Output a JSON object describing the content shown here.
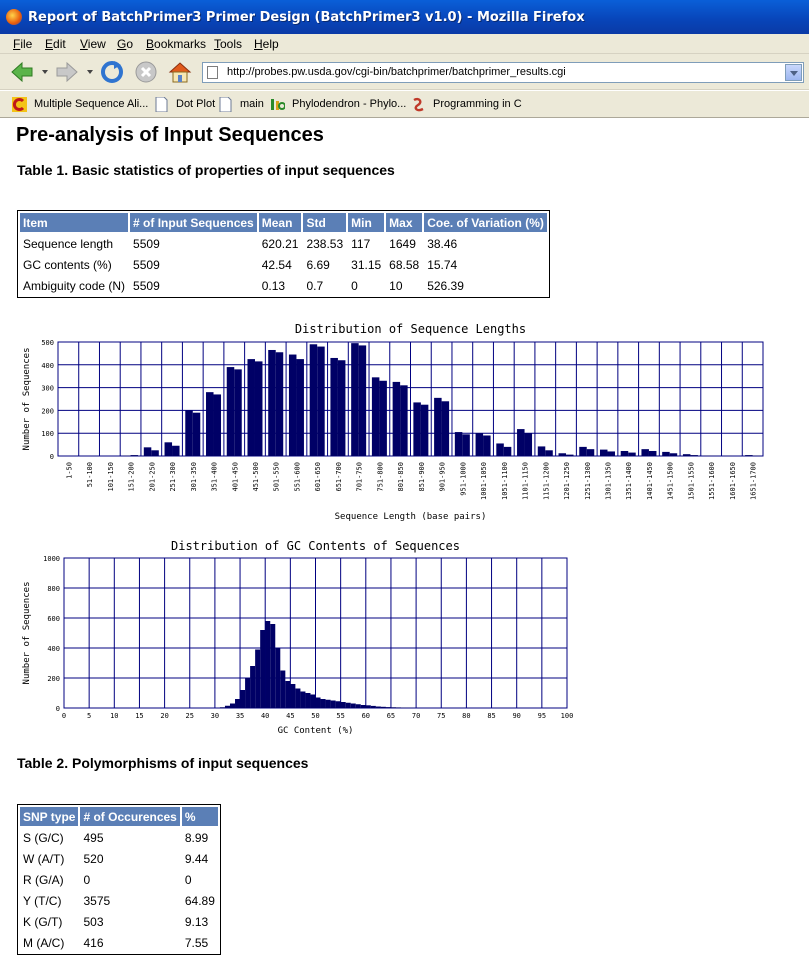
{
  "window": {
    "title": "Report of BatchPrimer3 Primer Design (BatchPrimer3 v1.0) - Mozilla Firefox"
  },
  "menu": [
    "File",
    "Edit",
    "View",
    "Go",
    "Bookmarks",
    "Tools",
    "Help"
  ],
  "address": {
    "url": "http://probes.pw.usda.gov/cgi-bin/batchprimer/batchprimer_results.cgi"
  },
  "bookmarks": [
    {
      "label": "Multiple Sequence Ali...",
      "icon": "c-logo-icon"
    },
    {
      "label": "Dot Plot",
      "icon": "page-icon"
    },
    {
      "label": "main",
      "icon": "page-icon"
    },
    {
      "label": "Phylodendron - Phylo...",
      "icon": "uio-logo-icon"
    },
    {
      "label": "Programming in C",
      "icon": "link-icon"
    }
  ],
  "page": {
    "heading": "Pre-analysis of Input Sequences",
    "table1": {
      "caption": "Table 1. Basic statistics of properties of input sequences",
      "headers": [
        "Item",
        "# of Input Sequences",
        "Mean",
        "Std",
        "Min",
        "Max",
        "Coe. of Variation (%)"
      ],
      "rows": [
        [
          "Sequence length",
          "5509",
          "620.21",
          "238.53",
          "117",
          "1649",
          "38.46"
        ],
        [
          "GC contents (%)",
          "5509",
          "42.54",
          "6.69",
          "31.15",
          "68.58",
          "15.74"
        ],
        [
          "Ambiguity code (N)",
          "5509",
          "0.13",
          "0.7",
          "0",
          "10",
          "526.39"
        ]
      ]
    },
    "table2": {
      "caption": "Table 2. Polymorphisms of input sequences",
      "headers": [
        "SNP type",
        "# of Occurences",
        "%"
      ],
      "rows": [
        [
          "S (G/C)",
          "495",
          "8.99"
        ],
        [
          "W (A/T)",
          "520",
          "9.44"
        ],
        [
          "R (G/A)",
          "0",
          "0"
        ],
        [
          "Y (T/C)",
          "3575",
          "64.89"
        ],
        [
          "K (G/T)",
          "503",
          "9.13"
        ],
        [
          "M (A/C)",
          "416",
          "7.55"
        ]
      ]
    }
  },
  "colors": {
    "bar": "#000066",
    "grid": "#000080",
    "header": "#5b7fb6"
  },
  "chart_data": [
    {
      "type": "bar",
      "title": "Distribution of Sequence Lengths",
      "xlabel": "Sequence Length (base pairs)",
      "ylabel": "Number of Sequences",
      "ylim": [
        0,
        500
      ],
      "yticks": [
        0,
        100,
        200,
        300,
        400,
        500
      ],
      "grid": true,
      "categories": [
        "1-50",
        "51-100",
        "101-150",
        "151-200",
        "201-250",
        "251-300",
        "301-350",
        "351-400",
        "401-450",
        "451-500",
        "501-550",
        "551-600",
        "601-650",
        "651-700",
        "701-750",
        "751-800",
        "801-850",
        "851-900",
        "901-950",
        "951-1000",
        "1001-1050",
        "1051-1100",
        "1101-1150",
        "1151-1200",
        "1201-1250",
        "1251-1300",
        "1301-1350",
        "1351-1400",
        "1401-1450",
        "1451-1500",
        "1501-1550",
        "1551-1600",
        "1601-1650",
        "1651-1700"
      ],
      "values": [
        [
          0,
          0
        ],
        [
          0,
          0
        ],
        [
          0,
          0
        ],
        [
          2,
          4
        ],
        [
          38,
          25
        ],
        [
          60,
          45
        ],
        [
          200,
          190
        ],
        [
          280,
          270
        ],
        [
          390,
          380
        ],
        [
          425,
          415
        ],
        [
          465,
          455
        ],
        [
          445,
          425
        ],
        [
          490,
          480
        ],
        [
          430,
          420
        ],
        [
          495,
          485
        ],
        [
          345,
          330
        ],
        [
          325,
          310
        ],
        [
          235,
          225
        ],
        [
          255,
          240
        ],
        [
          105,
          95
        ],
        [
          100,
          90
        ],
        [
          55,
          40
        ],
        [
          118,
          100
        ],
        [
          42,
          25
        ],
        [
          12,
          6
        ],
        [
          40,
          30
        ],
        [
          28,
          20
        ],
        [
          22,
          15
        ],
        [
          30,
          22
        ],
        [
          18,
          12
        ],
        [
          8,
          4
        ],
        [
          2,
          1
        ],
        [
          1,
          0
        ],
        [
          4,
          2
        ]
      ]
    },
    {
      "type": "bar",
      "title": "Distribution of GC Contents of Sequences",
      "xlabel": "GC Content (%)",
      "ylabel": "Number of Sequences",
      "ylim": [
        0,
        1000
      ],
      "xlim": [
        0,
        100
      ],
      "xticks": [
        0,
        5,
        10,
        15,
        20,
        25,
        30,
        35,
        40,
        45,
        50,
        55,
        60,
        65,
        70,
        75,
        80,
        85,
        90,
        95,
        100
      ],
      "yticks": [
        0,
        200,
        400,
        600,
        800,
        1000
      ],
      "grid": true,
      "x": [
        31,
        32,
        33,
        34,
        35,
        36,
        37,
        38,
        39,
        40,
        41,
        42,
        43,
        44,
        45,
        46,
        47,
        48,
        49,
        50,
        51,
        52,
        53,
        54,
        55,
        56,
        57,
        58,
        59,
        60,
        61,
        62,
        63,
        64,
        65,
        66,
        67,
        68,
        69
      ],
      "values": [
        5,
        15,
        30,
        60,
        120,
        200,
        280,
        390,
        520,
        580,
        560,
        400,
        250,
        180,
        160,
        130,
        110,
        100,
        90,
        70,
        60,
        55,
        50,
        45,
        40,
        35,
        30,
        25,
        20,
        18,
        14,
        10,
        8,
        6,
        5,
        4,
        3,
        2,
        1
      ]
    }
  ]
}
